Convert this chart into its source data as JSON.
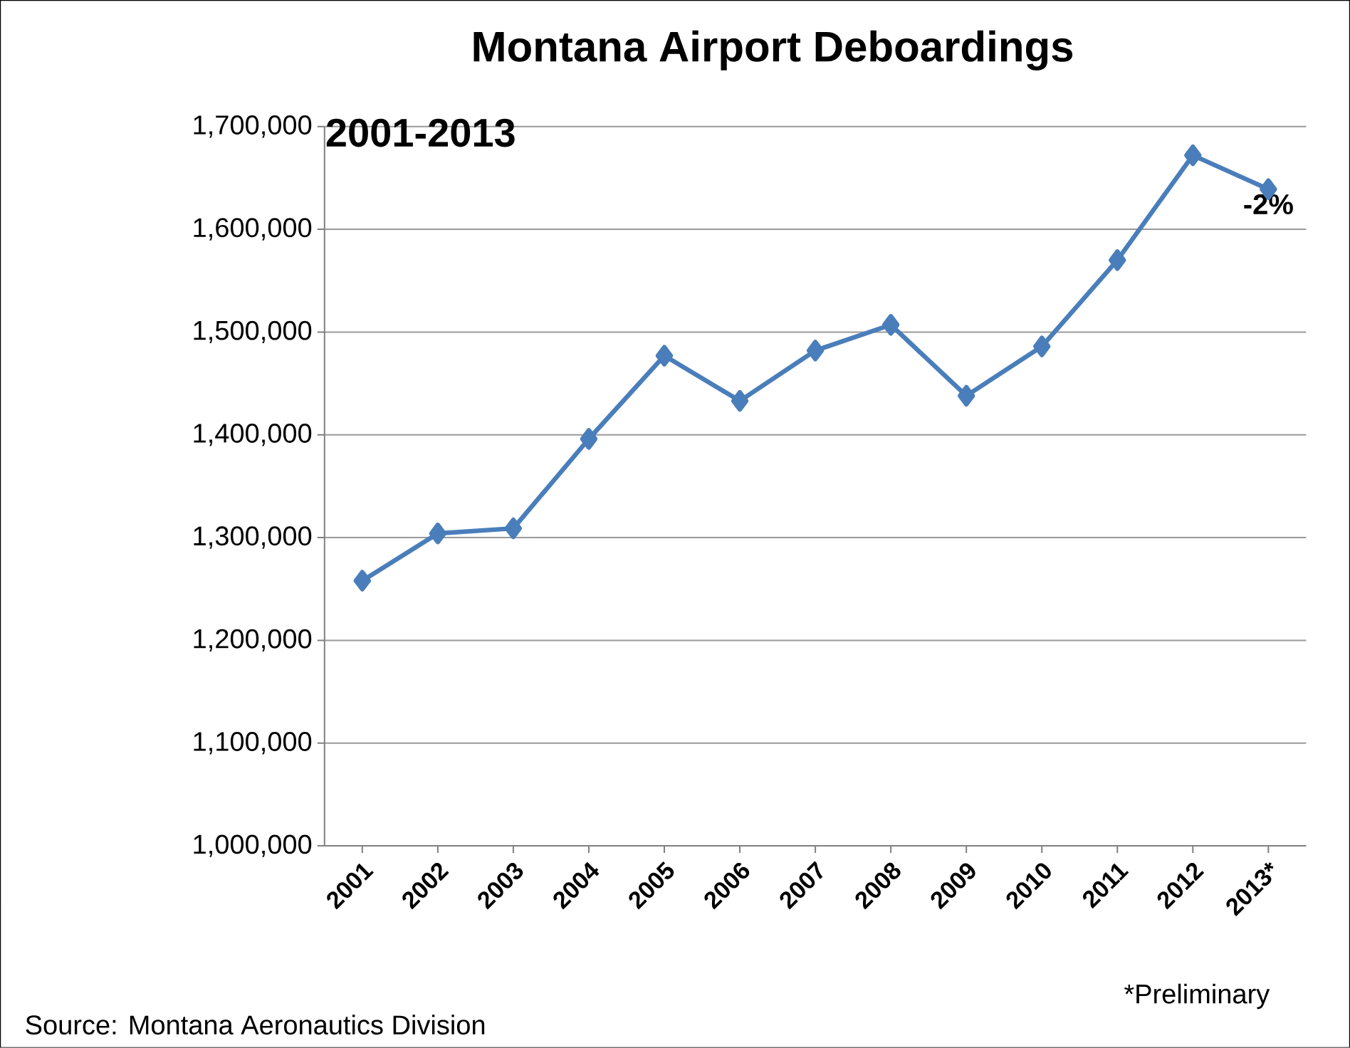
{
  "chart_data": {
    "type": "line",
    "title": "Montana Airport Deboardings",
    "subtitle": "2001-2013",
    "categories": [
      "2001",
      "2002",
      "2003",
      "2004",
      "2005",
      "2006",
      "2007",
      "2008",
      "2009",
      "2010",
      "2011",
      "2012",
      "2013*"
    ],
    "series": [
      {
        "color": "#4a7ebb",
        "values": [
          1258000,
          1304000,
          1309000,
          1396000,
          1477000,
          1433000,
          1482000,
          1507000,
          1438000,
          1486000,
          1570000,
          1672000,
          1639000
        ]
      }
    ],
    "ylim": [
      1000000,
      1700000
    ],
    "yticks": [
      {
        "value": 1000000,
        "label": "1,000,000"
      },
      {
        "value": 1100000,
        "label": "1,100,000"
      },
      {
        "value": 1200000,
        "label": "1,200,000"
      },
      {
        "value": 1300000,
        "label": "1,300,000"
      },
      {
        "value": 1400000,
        "label": "1,400,000"
      },
      {
        "value": 1500000,
        "label": "1,500,000"
      },
      {
        "value": 1600000,
        "label": "1,600,000"
      },
      {
        "value": 1700000,
        "label": "1,700,000"
      }
    ],
    "grid": "y",
    "marker": "diamond",
    "line_style": "solid",
    "annotations": [
      {
        "text": "-2%",
        "x": "2013*",
        "y": 1639000
      },
      "Source: Montana Aeronautics Division",
      "*Preliminary"
    ]
  }
}
